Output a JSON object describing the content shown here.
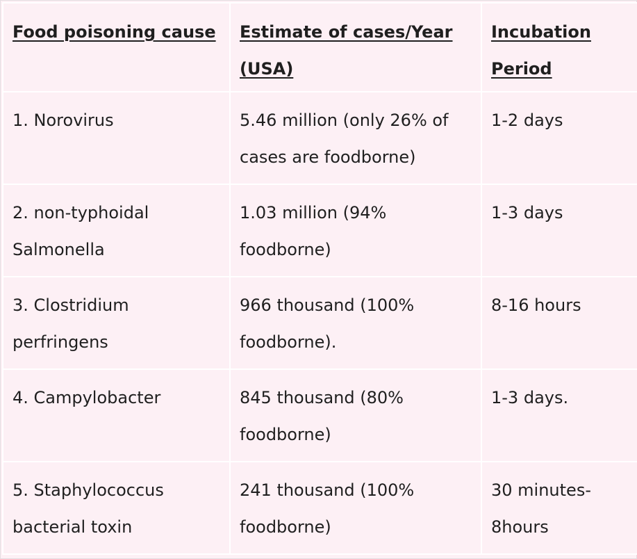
{
  "table": {
    "headers": [
      "Food poisoning cause",
      "Estimate of cases/Year (USA)",
      "Incubation Period"
    ],
    "rows": [
      [
        "1. Norovirus",
        "5.46 million (only 26% of cases are foodborne)",
        "1-2 days"
      ],
      [
        "2. non-typhoidal Salmonella",
        "1.03 million (94% foodborne)",
        "1-3 days"
      ],
      [
        "3. Clostridium perfringens",
        "966 thousand (100% foodborne).",
        "8-16 hours"
      ],
      [
        "4. Campylobacter",
        "845 thousand (80% foodborne)",
        "1-3 days."
      ],
      [
        "5. Staphylococcus bacterial toxin",
        "241 thousand (100% foodborne)",
        "30 minutes-8hours"
      ]
    ]
  }
}
